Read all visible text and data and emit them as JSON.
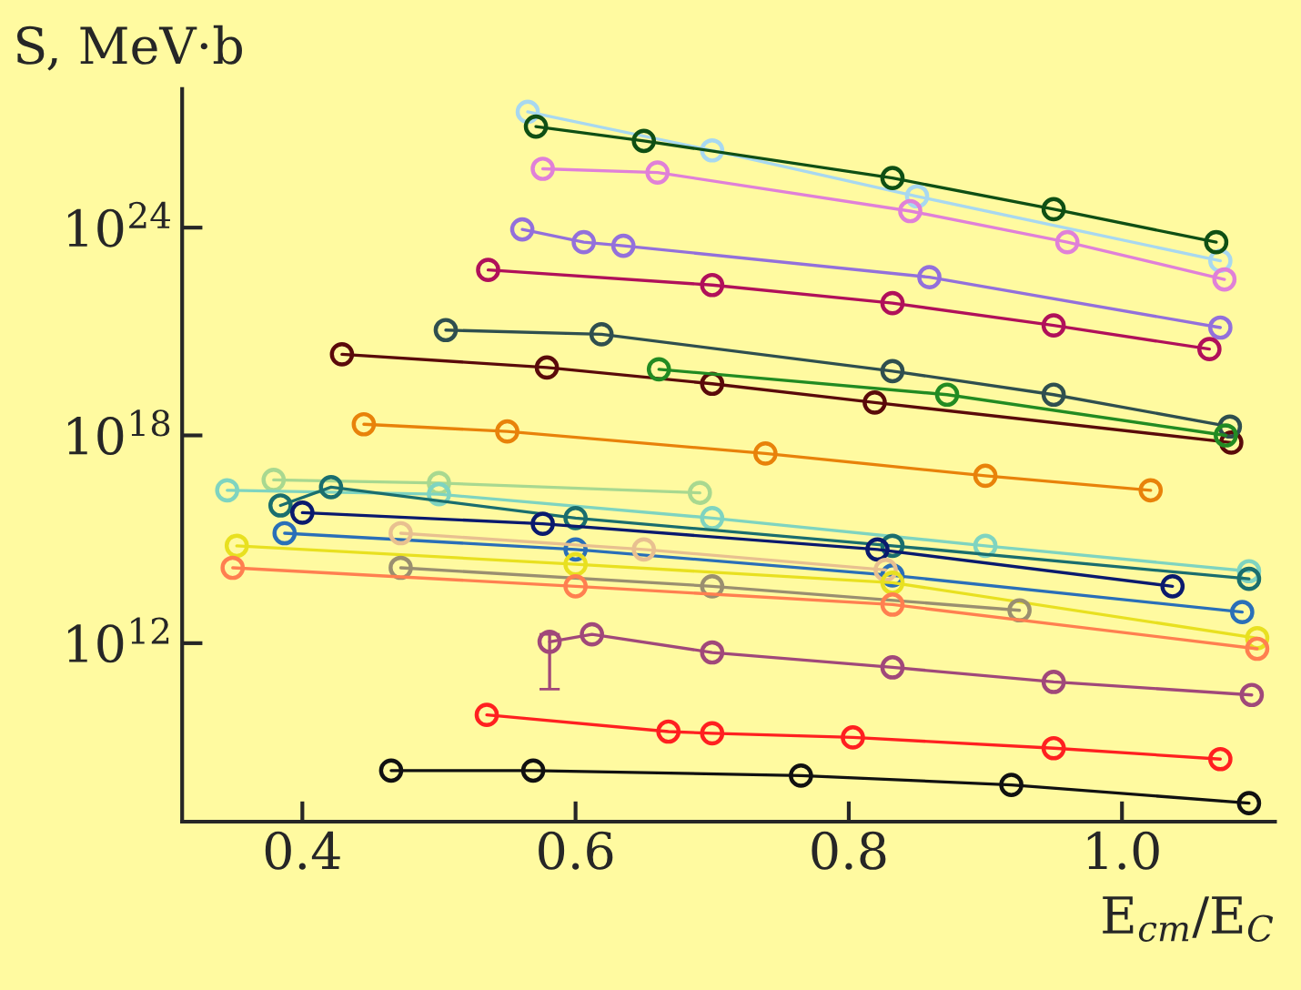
{
  "chart_data": {
    "type": "line",
    "xlabel": "E$_{cm}$/E$_{C}$",
    "ylabel": "S, MeV·b",
    "log": "y",
    "marker": "circle",
    "line_style": "solid",
    "grid": false,
    "legend": false,
    "xlim": [
      0.312,
      1.112
    ],
    "xticks": [
      {
        "value": 0.4,
        "label": "0.4"
      },
      {
        "value": 0.6,
        "label": "0.6"
      },
      {
        "value": 0.8,
        "label": "0.8"
      },
      {
        "value": 1.0,
        "label": "1.0"
      }
    ],
    "ylim": [
      7000000.0,
      1e+28
    ],
    "yticks": [
      {
        "value": 1000000000000.0,
        "label": "10$^{12}$"
      },
      {
        "value": 1e+18,
        "label": "10$^{18}$"
      },
      {
        "value": 1e+24,
        "label": "10$^{24}$"
      }
    ],
    "series": [
      {
        "color": "#a8d8f0",
        "x": [
          0.565,
          0.7,
          0.85,
          1.072
        ],
        "values": [
          2.2e+27,
          1.7e+26,
          8e+24,
          1.1e+23
        ]
      },
      {
        "color": "#0f4f14",
        "x": [
          0.571,
          0.65,
          0.832,
          0.95,
          1.069
        ],
        "values": [
          8.3e+26,
          3.2e+26,
          2.7e+25,
          3.4e+24,
          3.8e+23
        ]
      },
      {
        "color": "#e080d8",
        "x": [
          0.576,
          0.66,
          0.845,
          0.96,
          1.075
        ],
        "values": [
          5e+25,
          3.9e+25,
          3e+24,
          3.8e+23,
          3.2e+22
        ]
      },
      {
        "color": "#9370db",
        "x": [
          0.561,
          0.606,
          0.635,
          0.859,
          1.072
        ],
        "values": [
          8.9e+23,
          3.8e+23,
          3e+23,
          3.7e+22,
          1.3e+21
        ]
      },
      {
        "color": "#b0105a",
        "x": [
          0.536,
          0.7,
          0.832,
          0.95,
          1.064
        ],
        "values": [
          6e+22,
          2.2e+22,
          6.6e+21,
          1.5e+21,
          3.1e+20
        ]
      },
      {
        "color": "#5a0a0a",
        "x": [
          0.429,
          0.579,
          0.7,
          0.819,
          1.08
        ],
        "values": [
          2.2e+20,
          9.1e+19,
          3.1e+19,
          8.9e+18,
          6.2e+17
        ]
      },
      {
        "color": "#2f4f4f",
        "x": [
          0.505,
          0.619,
          0.832,
          0.95,
          1.079
        ],
        "values": [
          1.1e+21,
          8.3e+20,
          7.2e+19,
          1.5e+19,
          1.8e+18
        ]
      },
      {
        "color": "#228b22",
        "x": [
          0.661,
          0.872,
          1.076
        ],
        "values": [
          8.1e+19,
          1.5e+19,
          1e+18
        ]
      },
      {
        "color": "#e8820a",
        "x": [
          0.445,
          0.55,
          0.739,
          0.9,
          1.021
        ],
        "values": [
          2.1e+18,
          1.3e+18,
          3e+17,
          6.8e+16,
          2.6e+16
        ]
      },
      {
        "color": "#a8d890",
        "x": [
          0.379,
          0.5,
          0.691
        ],
        "values": [
          5.2e+16,
          4.2e+16,
          2.2e+16
        ]
      },
      {
        "color": "#7fd4c0",
        "x": [
          0.345,
          0.5,
          0.7,
          0.9,
          1.093
        ],
        "values": [
          2.6e+16,
          2e+16,
          4100000000000000.0,
          650000000000000.0,
          120000000000000.0
        ]
      },
      {
        "color": "#1a6e6e",
        "x": [
          0.384,
          0.421,
          0.6,
          0.832,
          1.093
        ],
        "values": [
          9500000000000000.0,
          3.2e+16,
          4100000000000000.0,
          650000000000000.0,
          72000000000000.0
        ]
      },
      {
        "color": "#0a1a6e",
        "x": [
          0.4,
          0.576,
          0.821,
          1.037
        ],
        "values": [
          5900000000000000.0,
          2800000000000000.0,
          510000000000000.0,
          44000000000000.0
        ]
      },
      {
        "color": "#2a6fb8",
        "x": [
          0.387,
          0.6,
          0.832,
          1.088
        ],
        "values": [
          1500000000000000.0,
          510000000000000.0,
          91000000000000.0,
          7900000000000.0
        ]
      },
      {
        "color": "#e8c090",
        "x": [
          0.472,
          0.65,
          0.827
        ],
        "values": [
          1500000000000000.0,
          510000000000000.0,
          130000000000000.0
        ]
      },
      {
        "color": "#e8e020",
        "x": [
          0.352,
          0.6,
          0.832,
          1.099
        ],
        "values": [
          650000000000000.0,
          190000000000000.0,
          56000000000000.0,
          1400000000000.0
        ]
      },
      {
        "color": "#9a8f70",
        "x": [
          0.472,
          0.7,
          0.925
        ],
        "values": [
          150000000000000.0,
          44000000000000.0,
          8900000000000.0
        ]
      },
      {
        "color": "#ff7f50",
        "x": [
          0.349,
          0.6,
          0.832,
          1.099
        ],
        "values": [
          150000000000000.0,
          44000000000000.0,
          13000000000000.0,
          690000000000.0
        ]
      },
      {
        "color": "#a0487a",
        "x": [
          0.581,
          0.612,
          0.7,
          0.832,
          0.95,
          1.095
        ],
        "values": [
          1100000000000.0,
          1800000000000.0,
          540000000000.0,
          200000000000.0,
          76000000000.0,
          32000000000.0
        ],
        "errors": [
          [
            47000000000.0,
            1800000000000.0
          ],
          null,
          null,
          null,
          null,
          null
        ]
      },
      {
        "color": "#ff2020",
        "x": [
          0.535,
          0.668,
          0.7,
          0.803,
          0.95,
          1.072
        ],
        "values": [
          8500000000.0,
          2800000000.0,
          2500000000.0,
          1900000000.0,
          930000000.0,
          450000000.0
        ]
      },
      {
        "color": "#111111",
        "x": [
          0.465,
          0.569,
          0.765,
          0.919,
          1.093
        ],
        "values": [
          210000000.0,
          210000000.0,
          150000000.0,
          81000000.0,
          24000000.0
        ]
      }
    ]
  }
}
